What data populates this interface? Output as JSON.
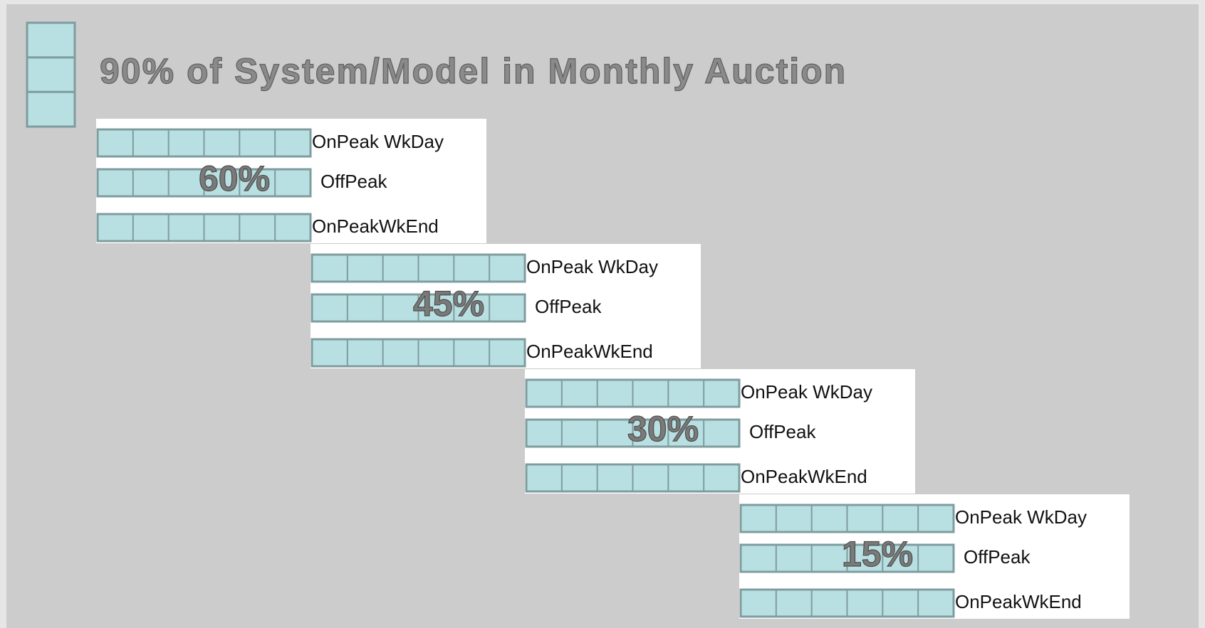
{
  "title": "90% of System/Model in Monthly Auction",
  "stages": [
    {
      "percent": "60%",
      "rows": [
        "OnPeak WkDay",
        "OffPeak",
        "OnPeakWkEnd"
      ]
    },
    {
      "percent": "45%",
      "rows": [
        "OnPeak WkDay",
        "OffPeak",
        "OnPeakWkEnd"
      ]
    },
    {
      "percent": "30%",
      "rows": [
        "OnPeak WkDay",
        "OffPeak",
        "OnPeakWkEnd"
      ]
    },
    {
      "percent": "15%",
      "rows": [
        "OnPeak WkDay",
        "OffPeak",
        "OnPeakWkEnd"
      ]
    }
  ]
}
